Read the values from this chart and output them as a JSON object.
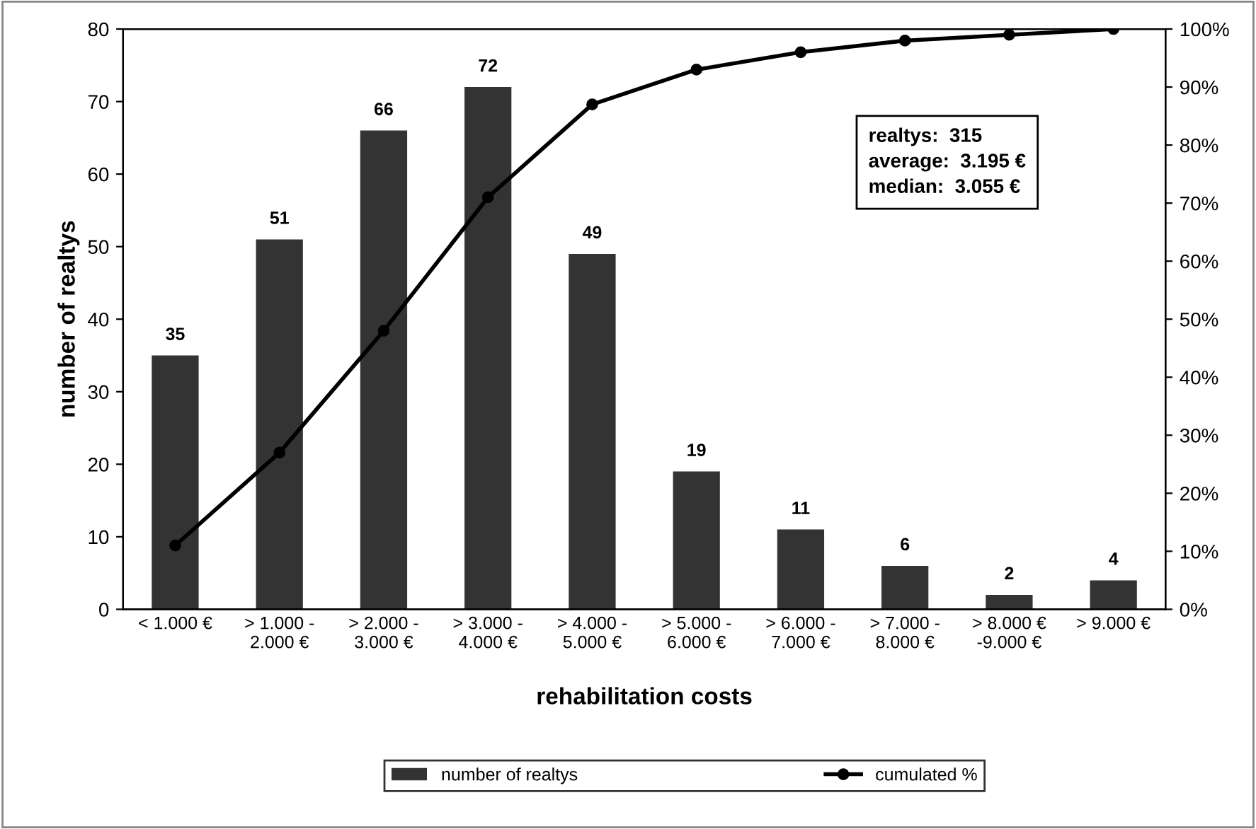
{
  "chart_data": {
    "type": "bar",
    "xlabel": "rehabilitation costs",
    "ylabel": "number of realtys",
    "categories": [
      "< 1.000 €",
      "> 1.000 -\n2.000 €",
      "> 2.000 -\n3.000 €",
      "> 3.000 -\n4.000 €",
      "> 4.000 -\n5.000 €",
      "> 5.000 -\n6.000 €",
      "> 6.000 -\n7.000 €",
      "> 7.000 -\n8.000 €",
      "> 8.000 €\n-9.000 €",
      "> 9.000 €"
    ],
    "series": [
      {
        "name": "number of realtys",
        "color": "#333333",
        "values": [
          35,
          51,
          66,
          72,
          49,
          19,
          11,
          6,
          2,
          4
        ],
        "value_labels": [
          "35",
          "51",
          "66",
          "72",
          "49",
          "19",
          "11",
          "6",
          "2",
          "4"
        ]
      },
      {
        "name": "cumulated %",
        "type": "line",
        "axis": "y2",
        "color": "#000000",
        "marker": "circle",
        "values": [
          11,
          27,
          48,
          71,
          87,
          93,
          96,
          98,
          99,
          100
        ]
      }
    ],
    "ylim": [
      0,
      80
    ],
    "yticks": [
      0,
      10,
      20,
      30,
      40,
      50,
      60,
      70,
      80
    ],
    "y2lim": [
      0,
      100
    ],
    "y2ticks": [
      {
        "value": 0,
        "label": "0%"
      },
      {
        "value": 10,
        "label": "10%"
      },
      {
        "value": 20,
        "label": "20%"
      },
      {
        "value": 30,
        "label": "30%"
      },
      {
        "value": 40,
        "label": "40%"
      },
      {
        "value": 50,
        "label": "50%"
      },
      {
        "value": 60,
        "label": "60%"
      },
      {
        "value": 70,
        "label": "70%"
      },
      {
        "value": 80,
        "label": "80%"
      },
      {
        "value": 90,
        "label": "90%"
      },
      {
        "value": 100,
        "label": "100%"
      }
    ],
    "annotations": [
      "realtys:  315",
      "average:  3.195 €",
      "median:  3.055 €"
    ],
    "legend": "bottom",
    "grid": false
  }
}
